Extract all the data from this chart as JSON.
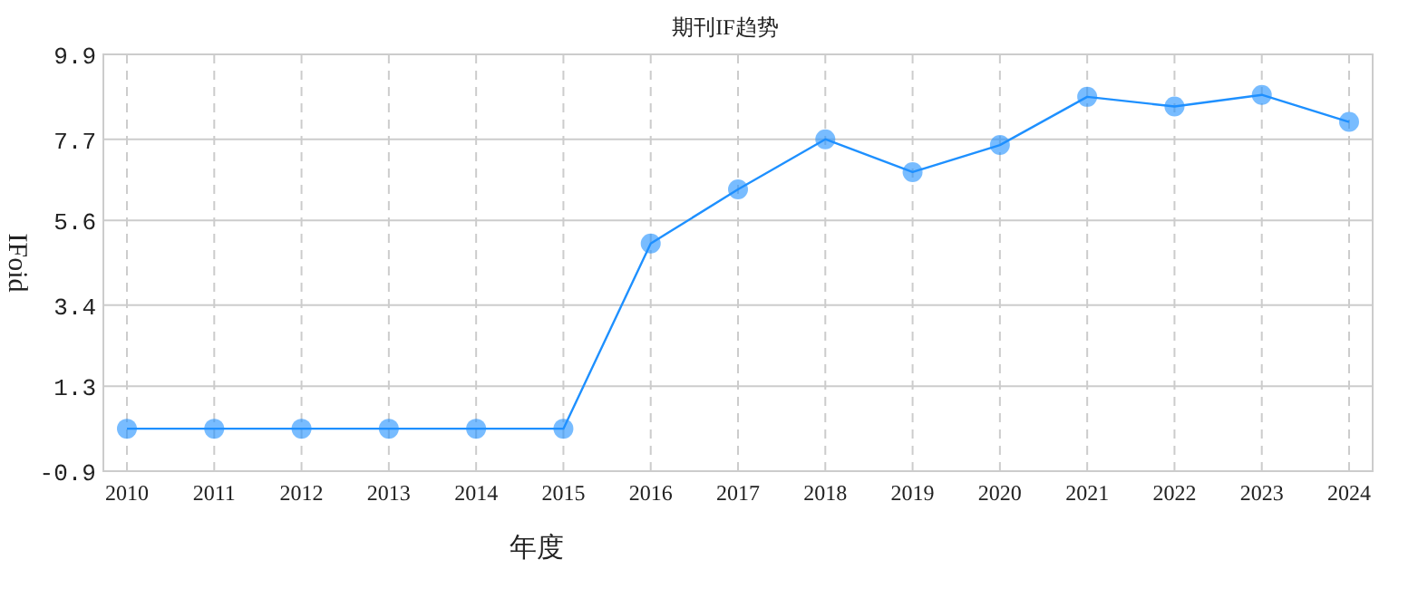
{
  "chart_data": {
    "type": "line",
    "title": "期刊IF趋势",
    "xlabel": "年度",
    "ylabel": "IFoid",
    "categories": [
      "2010",
      "2011",
      "2012",
      "2013",
      "2014",
      "2015",
      "2016",
      "2017",
      "2018",
      "2019",
      "2020",
      "2021",
      "2022",
      "2023",
      "2024"
    ],
    "values": [
      0.2,
      0.2,
      0.2,
      0.2,
      0.2,
      0.2,
      5.0,
      6.4,
      7.7,
      6.85,
      7.55,
      8.8,
      8.55,
      8.85,
      8.15
    ],
    "color": "#1e90ff",
    "marker": "circle",
    "grid": true,
    "ylim": [
      -0.9,
      9.9
    ],
    "yticks": [
      -0.9,
      1.3,
      3.4,
      5.6,
      7.7,
      9.9
    ]
  }
}
